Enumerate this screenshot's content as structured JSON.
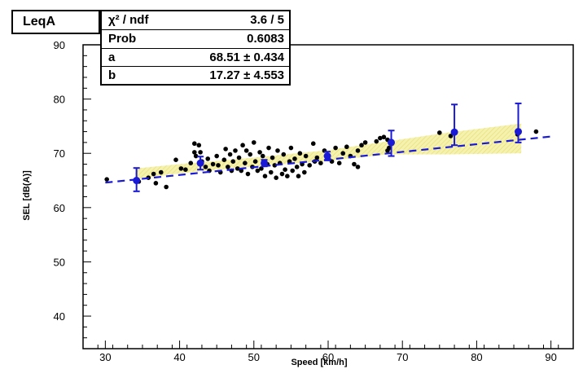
{
  "chart_data": {
    "type": "scatter",
    "title": "LeqA",
    "xlabel": "Speed [km/h]",
    "ylabel": "SEL [dB(A)]",
    "xlim": [
      27,
      93
    ],
    "ylim": [
      34,
      90
    ],
    "xticks": [
      30,
      40,
      50,
      60,
      70,
      80,
      90
    ],
    "yticks": [
      40,
      50,
      60,
      70,
      80,
      90
    ],
    "stats": [
      {
        "key": "χ² / ndf",
        "value": "3.6 / 5"
      },
      {
        "key": "Prob",
        "value": "0.6083"
      },
      {
        "key": "a",
        "value": "68.51 ± 0.434"
      },
      {
        "key": "b",
        "value": "17.27 ± 4.553"
      }
    ],
    "scatter_points": [
      [
        30.2,
        65.2
      ],
      [
        34.5,
        64.8
      ],
      [
        35.8,
        65.5
      ],
      [
        36.5,
        66.2
      ],
      [
        36.8,
        64.5
      ],
      [
        37.5,
        66.5
      ],
      [
        38.2,
        63.8
      ],
      [
        39.5,
        68.8
      ],
      [
        40.2,
        67.2
      ],
      [
        40.8,
        67.0
      ],
      [
        41.5,
        68.2
      ],
      [
        42.0,
        71.8
      ],
      [
        42.0,
        70.2
      ],
      [
        42.2,
        69.5
      ],
      [
        42.6,
        71.5
      ],
      [
        42.8,
        70.2
      ],
      [
        43.0,
        68.5
      ],
      [
        43.5,
        67.5
      ],
      [
        43.8,
        69.0
      ],
      [
        44.0,
        66.8
      ],
      [
        44.5,
        68.0
      ],
      [
        45.0,
        69.5
      ],
      [
        45.2,
        67.8
      ],
      [
        45.5,
        66.5
      ],
      [
        46.0,
        68.8
      ],
      [
        46.2,
        70.8
      ],
      [
        46.5,
        67.5
      ],
      [
        46.8,
        69.8
      ],
      [
        47.0,
        66.8
      ],
      [
        47.2,
        68.5
      ],
      [
        47.5,
        70.5
      ],
      [
        47.8,
        67.2
      ],
      [
        48.0,
        69.2
      ],
      [
        48.3,
        66.8
      ],
      [
        48.5,
        71.5
      ],
      [
        48.8,
        68.2
      ],
      [
        49.0,
        70.5
      ],
      [
        49.2,
        66.2
      ],
      [
        49.5,
        69.8
      ],
      [
        49.8,
        67.5
      ],
      [
        50.0,
        72.0
      ],
      [
        50.2,
        68.5
      ],
      [
        50.5,
        66.8
      ],
      [
        50.8,
        70.2
      ],
      [
        51.0,
        67.2
      ],
      [
        51.2,
        69.5
      ],
      [
        51.5,
        65.8
      ],
      [
        51.8,
        68.0
      ],
      [
        52.0,
        71.0
      ],
      [
        52.3,
        66.5
      ],
      [
        52.5,
        69.2
      ],
      [
        52.8,
        67.8
      ],
      [
        53.0,
        65.5
      ],
      [
        53.2,
        70.5
      ],
      [
        53.5,
        68.2
      ],
      [
        53.8,
        66.2
      ],
      [
        54.0,
        69.8
      ],
      [
        54.2,
        67.0
      ],
      [
        54.5,
        65.8
      ],
      [
        54.8,
        68.5
      ],
      [
        55.0,
        71.0
      ],
      [
        55.2,
        66.8
      ],
      [
        55.5,
        69.0
      ],
      [
        55.8,
        67.5
      ],
      [
        56.0,
        65.8
      ],
      [
        56.2,
        70.0
      ],
      [
        56.5,
        68.0
      ],
      [
        56.8,
        66.5
      ],
      [
        57.0,
        69.5
      ],
      [
        57.5,
        67.8
      ],
      [
        58.0,
        71.8
      ],
      [
        58.2,
        68.5
      ],
      [
        58.5,
        69.2
      ],
      [
        59.0,
        68.2
      ],
      [
        59.5,
        70.5
      ],
      [
        60.0,
        69.0
      ],
      [
        60.5,
        68.5
      ],
      [
        61.0,
        71.0
      ],
      [
        61.5,
        68.2
      ],
      [
        62.0,
        70.0
      ],
      [
        62.5,
        71.2
      ],
      [
        63.0,
        69.5
      ],
      [
        63.5,
        68.0
      ],
      [
        64.0,
        70.5
      ],
      [
        64.0,
        67.5
      ],
      [
        64.5,
        71.5
      ],
      [
        65.0,
        72.0
      ],
      [
        66.5,
        72.2
      ],
      [
        67.0,
        72.8
      ],
      [
        67.5,
        73.0
      ],
      [
        68.0,
        72.5
      ],
      [
        68.0,
        70.5
      ],
      [
        68.2,
        71.0
      ],
      [
        75.0,
        73.8
      ],
      [
        76.5,
        73.2
      ],
      [
        85.5,
        73.5
      ],
      [
        88.0,
        74.0
      ]
    ],
    "profile_points": [
      {
        "x": 34.2,
        "y": 65.0,
        "ylo": 63.0,
        "yhi": 67.3
      },
      {
        "x": 42.8,
        "y": 68.2,
        "ylo": 67.0,
        "yhi": 69.4
      },
      {
        "x": 51.4,
        "y": 68.2,
        "ylo": 67.6,
        "yhi": 68.8
      },
      {
        "x": 59.9,
        "y": 69.5,
        "ylo": 68.7,
        "yhi": 70.3
      },
      {
        "x": 68.5,
        "y": 72.0,
        "ylo": 69.5,
        "yhi": 74.2
      },
      {
        "x": 77.0,
        "y": 73.9,
        "ylo": 71.5,
        "yhi": 79.0
      },
      {
        "x": 85.6,
        "y": 74.0,
        "ylo": 72.0,
        "yhi": 79.2
      }
    ],
    "fit_line": {
      "x": [
        30,
        90
      ],
      "y": [
        64.6,
        73.1
      ]
    },
    "band_upper": [
      [
        34,
        67.2
      ],
      [
        40,
        68.0
      ],
      [
        50,
        69.2
      ],
      [
        60,
        70.6
      ],
      [
        68,
        72.2
      ],
      [
        76,
        73.8
      ],
      [
        86,
        75.5
      ]
    ],
    "band_lower": [
      [
        34,
        65.2
      ],
      [
        40,
        66.3
      ],
      [
        50,
        67.6
      ],
      [
        60,
        68.6
      ],
      [
        68,
        69.8
      ],
      [
        76,
        69.8
      ],
      [
        86,
        70.0
      ]
    ],
    "colors": {
      "points": "#000000",
      "profile": "#1a1ad6",
      "band": "#f5f2b0",
      "band_hatch": "#e6dc6a",
      "frame": "#000000"
    }
  }
}
